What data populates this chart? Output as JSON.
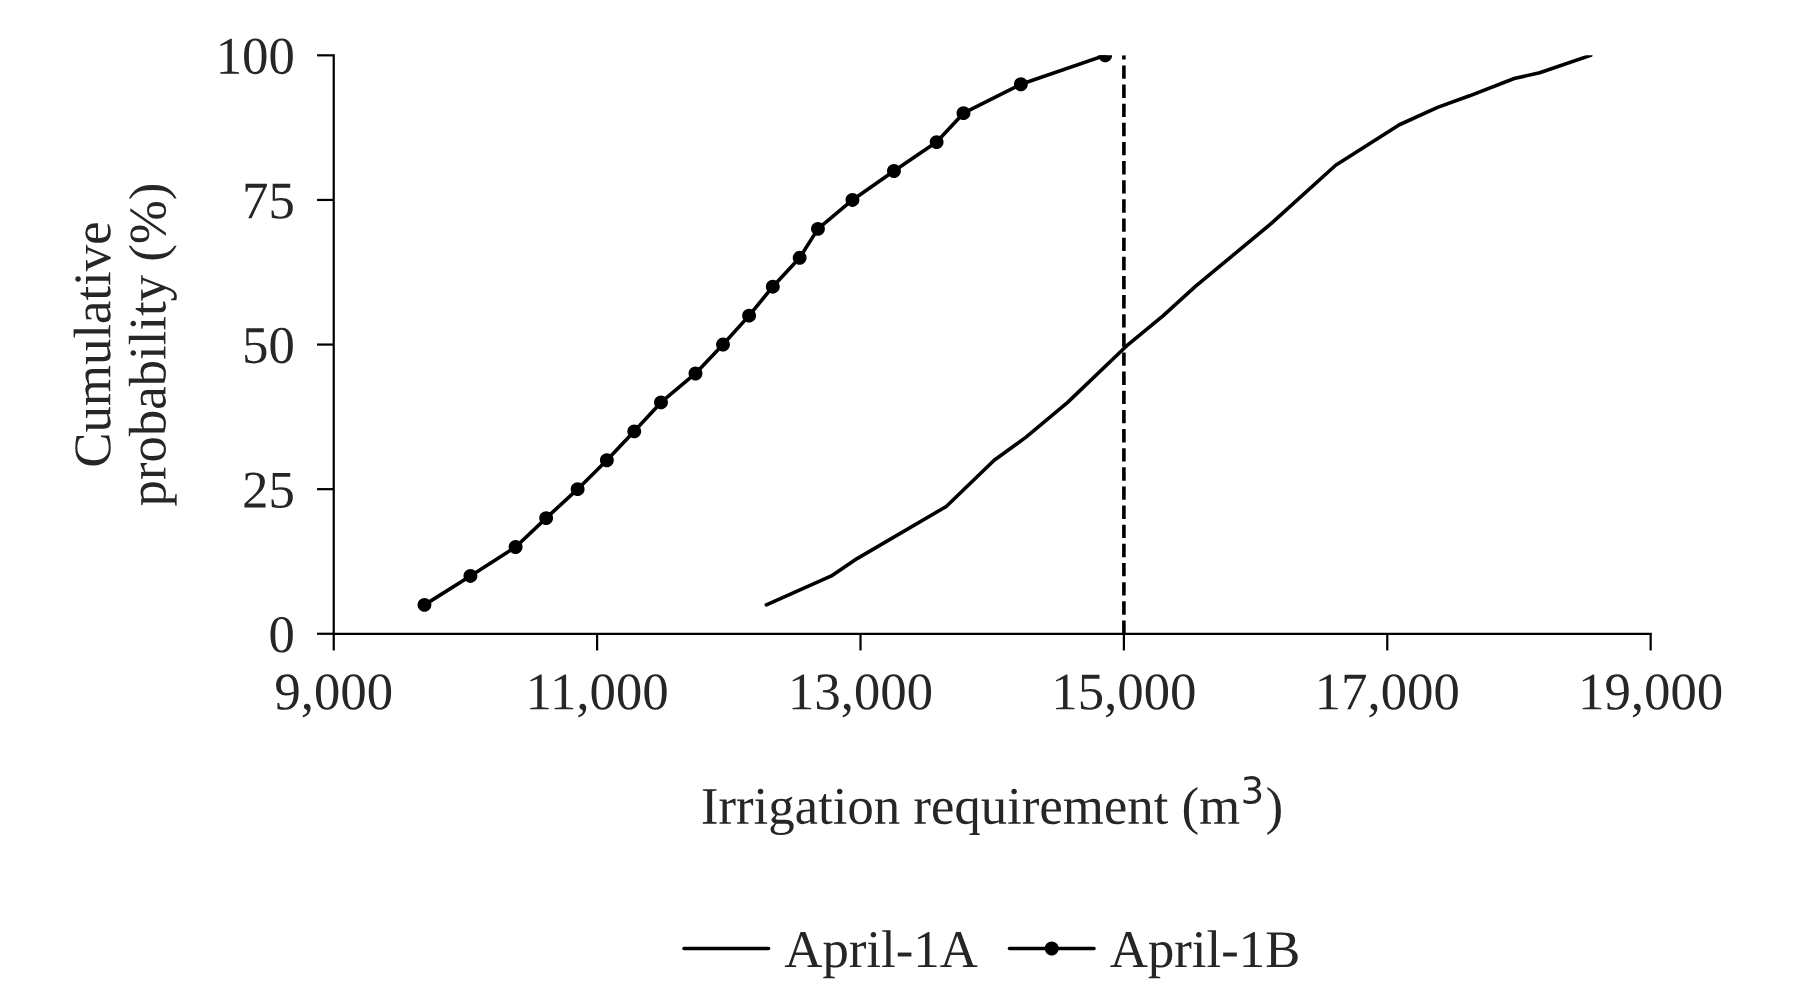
{
  "chart_data": {
    "type": "line",
    "xlabel": "Irrigation requirement (m$^{3}$)",
    "ylabel": "Cumulative\nprobability (%)",
    "xlim": [
      9000,
      19000
    ],
    "xticks": [
      {
        "value": 9000,
        "label": "9,000"
      },
      {
        "value": 11000,
        "label": "11,000"
      },
      {
        "value": 13000,
        "label": "13,000"
      },
      {
        "value": 15000,
        "label": "15,000"
      },
      {
        "value": 17000,
        "label": "17,000"
      },
      {
        "value": 19000,
        "label": "19,000"
      }
    ],
    "ylim": [
      0,
      100
    ],
    "yticks": [
      0,
      25,
      50,
      75,
      100
    ],
    "grid": false,
    "legend": "bottom",
    "series": [
      {
        "name": "April-1A",
        "color": "#000000",
        "marker": "none",
        "x": [
          12285,
          12779,
          12974,
          13651,
          14015,
          14257,
          14573,
          15032,
          15299,
          15541,
          16122,
          16608,
          17092,
          17382,
          17625,
          17964,
          18157,
          18545
        ],
        "values": [
          5,
          10,
          13,
          22,
          30,
          34,
          40,
          50,
          55,
          60,
          71,
          81,
          88,
          91,
          93,
          96,
          97,
          100
        ]
      },
      {
        "name": "April-1B",
        "color": "#000000",
        "marker": "circle",
        "x": [
          9689,
          10038,
          10381,
          10613,
          10852,
          11074,
          11282,
          11485,
          11747,
          11956,
          12154,
          12334,
          12538,
          12677,
          12939,
          13254,
          13578,
          13782,
          14218,
          14858
        ],
        "values": [
          5,
          10,
          15,
          20,
          25,
          30,
          35,
          40,
          45,
          50,
          55,
          60,
          65,
          70,
          75,
          80,
          85,
          90,
          95,
          100
        ]
      }
    ],
    "ref_lines": [
      {
        "axis": "x",
        "value": 15000,
        "line_style": "dashed",
        "color": "#000000"
      }
    ]
  }
}
